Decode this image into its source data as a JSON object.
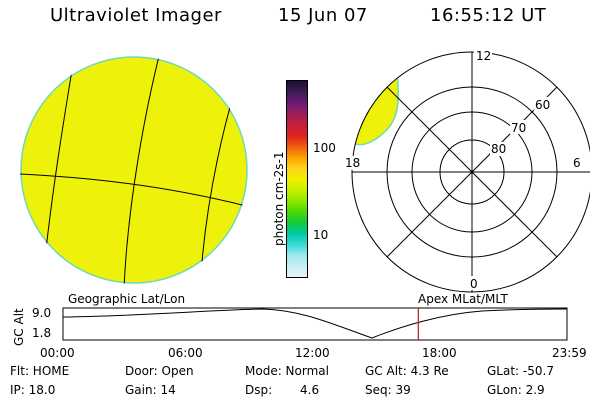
{
  "header": {
    "title": "Ultraviolet Imager",
    "date": "15 Jun 07",
    "time": "16:55:12 UT"
  },
  "colorbar": {
    "unit_label": "photon cm-2s-1",
    "tick_labels": [
      "100",
      "10"
    ],
    "colors_top_to_bottom": [
      "#1a0f2e",
      "#3d1a55",
      "#6a1a75",
      "#9c1f5a",
      "#c4203a",
      "#e02020",
      "#f05a10",
      "#f9a000",
      "#ffd21a",
      "#f0f000",
      "#c8f000",
      "#90e600",
      "#4dd800",
      "#12cc3a",
      "#00c8a0",
      "#35d8d8",
      "#9be8ec",
      "#c9eef2",
      "#e6f2f4"
    ]
  },
  "geo_panel": {
    "label": "Geographic Lat/Lon",
    "fill_color": "#eef20a"
  },
  "polar_panel": {
    "label": "Apex MLat/MLT",
    "mlt_labels": [
      "12",
      "18",
      "6",
      "0"
    ],
    "lat_labels": [
      "60",
      "70",
      "80"
    ]
  },
  "alt_plot": {
    "axis_label": "GC Alt",
    "y_ticks": [
      "9.0",
      "1.8"
    ],
    "x_ticks": [
      "00:00",
      "06:00",
      "12:00",
      "18:00",
      "23:59"
    ],
    "current_time_fraction": 0.705,
    "marker_color": "#b02020"
  },
  "info": {
    "flt": "Flt: HOME",
    "door": "Door: Open",
    "mode": "Mode: Normal",
    "gc_alt": "GC Alt: 4.3 Re",
    "glat": "GLat: -50.7",
    "ip": "IP: 18.0",
    "gain": "Gain: 14",
    "dsp_label": "Dsp:",
    "dsp_value": "4.6",
    "seq": "Seq: 39",
    "glon": "GLon: 2.9"
  }
}
